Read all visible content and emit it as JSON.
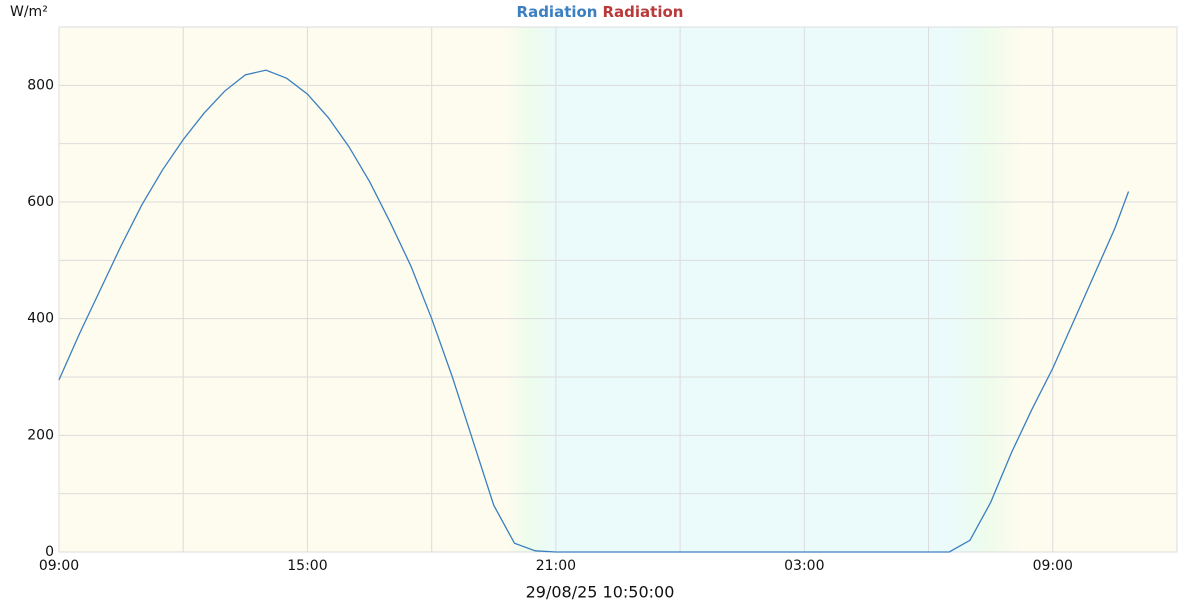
{
  "chart_data": {
    "type": "line",
    "title": "Radiation",
    "title_color": "#b83a3a",
    "y_unit": "W/m²",
    "xlabel": "29/08/25 10:50:00",
    "x": [
      0,
      0.5,
      1,
      1.5,
      2,
      2.5,
      3,
      3.5,
      4,
      4.5,
      5,
      5.5,
      6,
      6.5,
      7,
      7.5,
      8,
      8.5,
      9,
      9.5,
      10,
      10.5,
      11,
      11.5,
      12,
      12.5,
      13,
      13.5,
      14,
      14.5,
      15,
      15.5,
      16,
      16.5,
      17,
      17.5,
      18,
      18.5,
      19,
      19.5,
      20,
      20.5,
      21,
      21.5,
      22,
      22.5,
      23,
      23.5,
      24,
      24.5,
      25,
      25.5,
      25.83
    ],
    "series": [
      {
        "name": "Radiation",
        "color": "#3b7fc0",
        "values": [
          295,
          375,
          450,
          525,
          595,
          655,
          707,
          752,
          790,
          818,
          826,
          812,
          785,
          745,
          695,
          635,
          565,
          490,
          400,
          300,
          190,
          80,
          15,
          2,
          0,
          0,
          0,
          0,
          0,
          0,
          0,
          0,
          0,
          0,
          0,
          0,
          0,
          0,
          0,
          0,
          0,
          0,
          0,
          0,
          20,
          85,
          170,
          245,
          315,
          395,
          475,
          555,
          618
        ]
      }
    ],
    "xlim": [
      0,
      27
    ],
    "xticks": [
      {
        "value": 0,
        "label": "09:00"
      },
      {
        "value": 6,
        "label": "15:00"
      },
      {
        "value": 12,
        "label": "21:00"
      },
      {
        "value": 18,
        "label": "03:00"
      },
      {
        "value": 24,
        "label": "09:00"
      }
    ],
    "ylim": [
      0,
      900
    ],
    "yticks": [
      0,
      200,
      400,
      600,
      800
    ],
    "grid": true
  }
}
